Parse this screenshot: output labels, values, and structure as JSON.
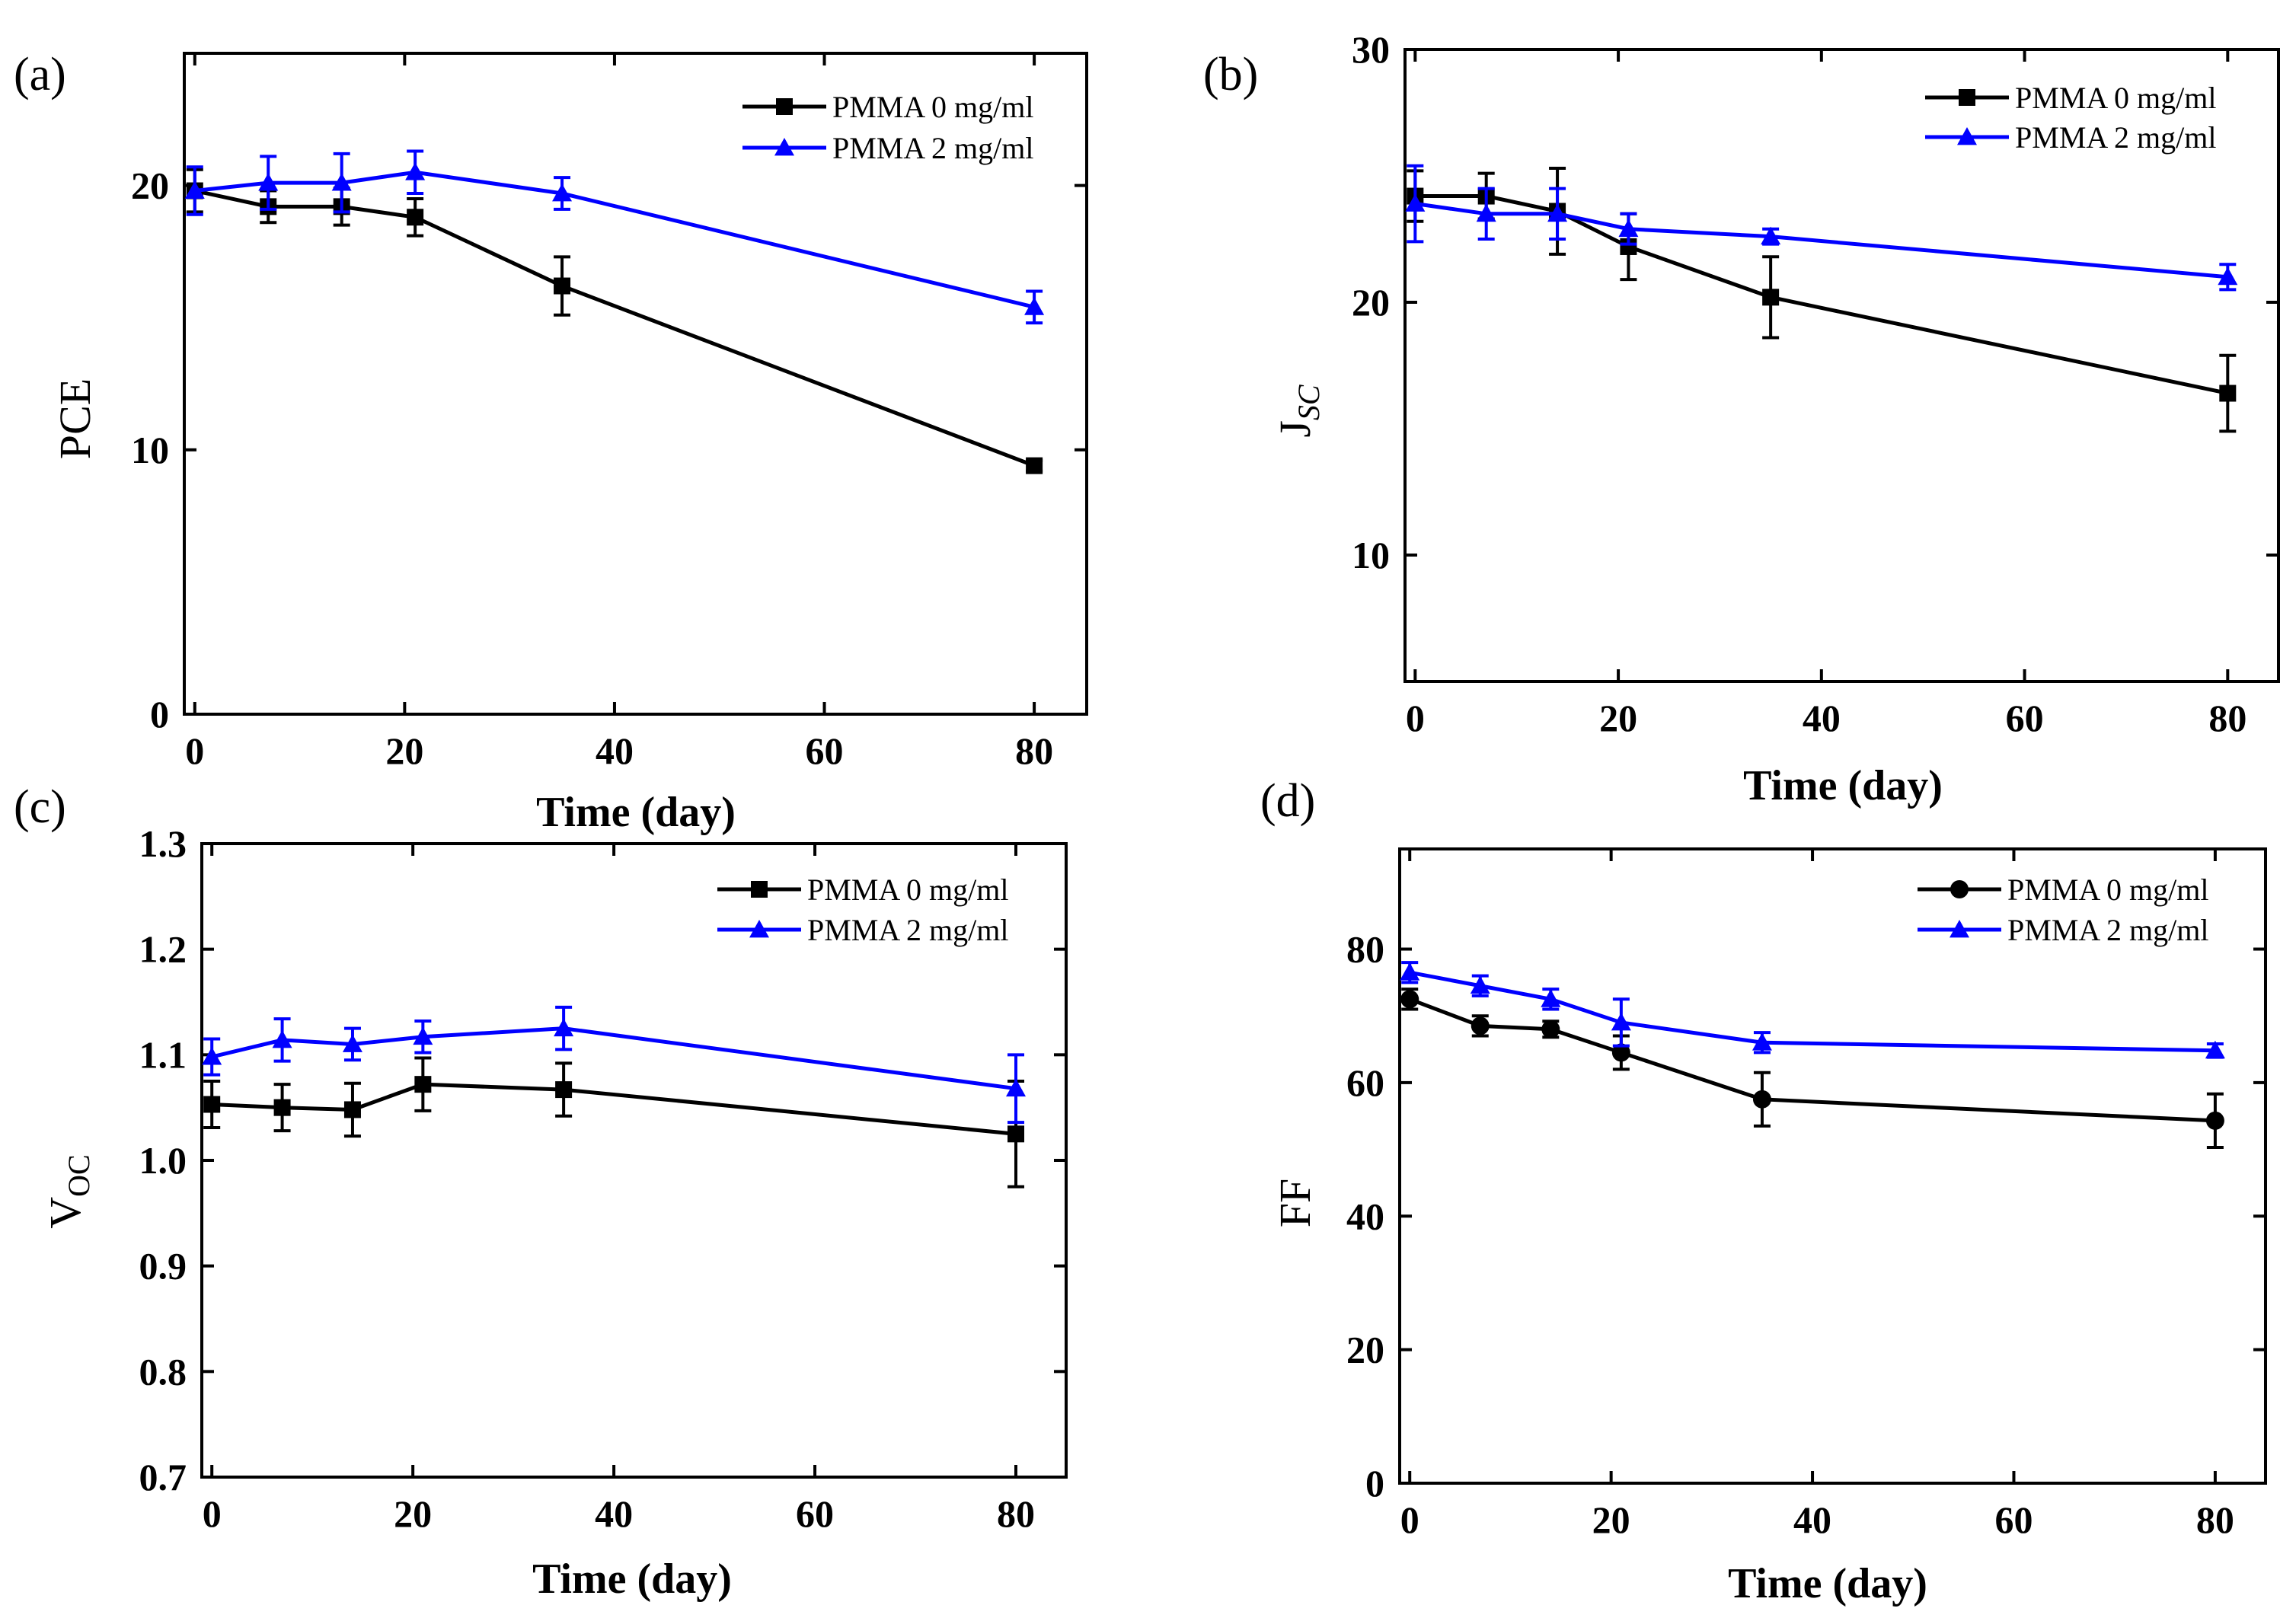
{
  "chart_data": [
    {
      "panel_label": "(a)",
      "type": "line",
      "title": "",
      "xlabel": "Time (day)",
      "ylabel": "PCE",
      "ylabel_sub": "",
      "xlim": [
        -1,
        85
      ],
      "ylim": [
        0,
        25
      ],
      "xticks": [
        0,
        20,
        40,
        60,
        80
      ],
      "yticks": [
        0,
        10,
        20
      ],
      "xtick_labels": [
        "0",
        "20",
        "40",
        "60",
        "80"
      ],
      "ytick_labels": [
        "0",
        "10",
        "20"
      ],
      "legend_position": "top-right",
      "x": [
        0,
        7,
        14,
        21,
        35,
        80
      ],
      "series": [
        {
          "name": "PMMA 0 mg/ml",
          "color": "#000000",
          "marker": "square",
          "values": [
            19.8,
            19.2,
            19.2,
            18.8,
            16.2,
            9.4
          ],
          "errors": [
            0.8,
            0.6,
            0.7,
            0.7,
            1.1,
            0.2
          ]
        },
        {
          "name": "PMMA 2 mg/ml",
          "color": "#0000ff",
          "marker": "triangle",
          "values": [
            19.8,
            20.1,
            20.1,
            20.5,
            19.7,
            15.4
          ],
          "errors": [
            0.9,
            1.0,
            1.1,
            0.8,
            0.6,
            0.6
          ]
        }
      ]
    },
    {
      "panel_label": "(b)",
      "type": "line",
      "title": "",
      "xlabel": "Time (day)",
      "ylabel": "J",
      "ylabel_sub": "SC",
      "xlim": [
        -1,
        85
      ],
      "ylim": [
        5,
        30
      ],
      "xticks": [
        0,
        20,
        40,
        60,
        80
      ],
      "yticks": [
        10,
        20,
        30
      ],
      "xtick_labels": [
        "0",
        "20",
        "40",
        "60",
        "80"
      ],
      "ytick_labels": [
        "10",
        "20",
        "30"
      ],
      "legend_position": "top-right",
      "x": [
        0,
        7,
        14,
        21,
        35,
        80
      ],
      "series": [
        {
          "name": "PMMA 0 mg/ml",
          "color": "#000000",
          "marker": "square",
          "values": [
            24.2,
            24.2,
            23.6,
            22.2,
            20.2,
            16.4
          ],
          "errors": [
            1.0,
            0.9,
            1.7,
            1.3,
            1.6,
            1.5
          ]
        },
        {
          "name": "PMMA 2 mg/ml",
          "color": "#0000ff",
          "marker": "triangle",
          "values": [
            23.9,
            23.5,
            23.5,
            22.9,
            22.6,
            21.0
          ],
          "errors": [
            1.5,
            1.0,
            1.0,
            0.6,
            0.3,
            0.5
          ]
        }
      ]
    },
    {
      "panel_label": "(c)",
      "type": "line",
      "title": "",
      "xlabel": "Time (day)",
      "ylabel": "V",
      "ylabel_sub": "OC",
      "xlim": [
        -1,
        85
      ],
      "ylim": [
        0.7,
        1.3
      ],
      "xticks": [
        0,
        20,
        40,
        60,
        80
      ],
      "yticks": [
        0.7,
        0.8,
        0.9,
        1.0,
        1.1,
        1.2,
        1.3
      ],
      "xtick_labels": [
        "0",
        "20",
        "40",
        "60",
        "80"
      ],
      "ytick_labels": [
        "0.7",
        "0.8",
        "0.9",
        "1.0",
        "1.1",
        "1.2",
        "1.3"
      ],
      "legend_position": "top-right",
      "x": [
        0,
        7,
        14,
        21,
        35,
        80
      ],
      "series": [
        {
          "name": "PMMA 0 mg/ml",
          "color": "#000000",
          "marker": "square",
          "values": [
            1.053,
            1.05,
            1.048,
            1.072,
            1.067,
            1.025
          ],
          "errors": [
            0.022,
            0.022,
            0.025,
            0.025,
            0.025,
            0.05
          ]
        },
        {
          "name": "PMMA 2 mg/ml",
          "color": "#0000ff",
          "marker": "triangle",
          "values": [
            1.098,
            1.114,
            1.11,
            1.117,
            1.125,
            1.068
          ],
          "errors": [
            0.017,
            0.02,
            0.015,
            0.015,
            0.02,
            0.032
          ]
        }
      ]
    },
    {
      "panel_label": "(d)",
      "type": "line",
      "title": "",
      "xlabel": "Time (day)",
      "ylabel": "FF",
      "ylabel_sub": "",
      "xlim": [
        -1,
        85
      ],
      "ylim": [
        0,
        95
      ],
      "xticks": [
        0,
        20,
        40,
        60,
        80
      ],
      "yticks": [
        0,
        20,
        40,
        60,
        80
      ],
      "xtick_labels": [
        "0",
        "20",
        "40",
        "60",
        "80"
      ],
      "ytick_labels": [
        "0",
        "20",
        "40",
        "60",
        "80"
      ],
      "legend_position": "top-right",
      "x": [
        0,
        7,
        14,
        21,
        35,
        80
      ],
      "series": [
        {
          "name": "PMMA 0 mg/ml",
          "color": "#000000",
          "marker": "circle",
          "values": [
            72.5,
            68.5,
            68.0,
            64.5,
            57.5,
            54.3
          ],
          "errors": [
            1.5,
            1.5,
            1.2,
            2.5,
            4.0,
            4.0
          ]
        },
        {
          "name": "PMMA 2 mg/ml",
          "color": "#0000ff",
          "marker": "triangle",
          "values": [
            76.5,
            74.5,
            72.5,
            69.0,
            66.0,
            64.8
          ],
          "errors": [
            1.5,
            1.5,
            1.5,
            3.5,
            1.5,
            1.0
          ]
        }
      ]
    }
  ]
}
